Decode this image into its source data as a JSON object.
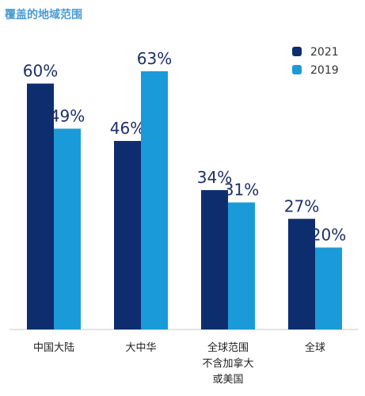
{
  "chart_data": {
    "type": "bar",
    "title": "覆盖的地域范围",
    "categories": [
      [
        "中国大陆"
      ],
      [
        "大中华"
      ],
      [
        "全球范围",
        "不含加拿大",
        "或美国"
      ],
      [
        "全球"
      ]
    ],
    "series": [
      {
        "name": "2021",
        "color": "#0d2d6e",
        "values": [
          60,
          46,
          34,
          27
        ],
        "labels": [
          "60%",
          "46%",
          "34%",
          "27%"
        ]
      },
      {
        "name": "2019",
        "color": "#1a9ad8",
        "values": [
          49,
          63,
          31,
          20
        ],
        "labels": [
          "49%",
          "63%",
          "31%",
          "20%"
        ]
      }
    ],
    "ylim": [
      0,
      63
    ],
    "unit": "%",
    "legend_position": "top-right",
    "grid": false,
    "axis_color": "#c8c8c8"
  }
}
